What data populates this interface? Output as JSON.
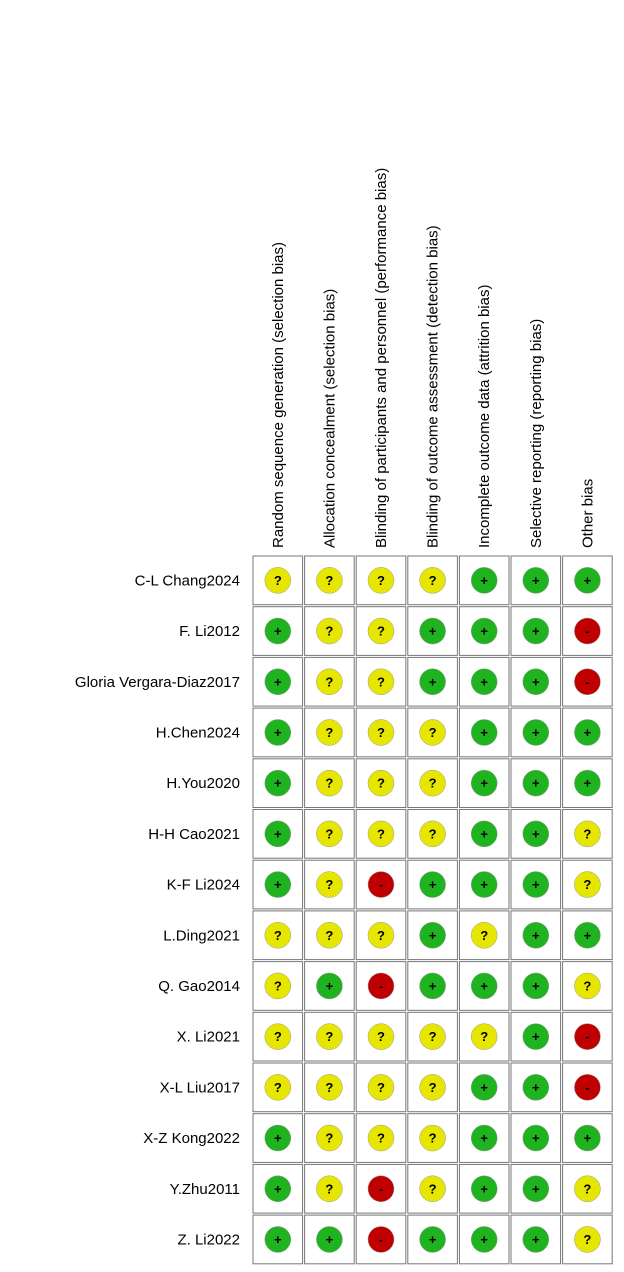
{
  "table": {
    "columns": [
      "Random sequence generation (selection bias)",
      "Allocation concealment (selection bias)",
      "Blinding of participants and personnel (performance bias)",
      "Blinding of outcome assessment (detection bias)",
      "Incomplete outcome data (attrition bias)",
      "Selective reporting (reporting bias)",
      "Other bias"
    ],
    "colors": {
      "+": "#1fb41f",
      "?": "#e6e600",
      "-": "#c00000"
    },
    "rows": [
      {
        "study": "C-L Chang2024",
        "judgements": [
          "?",
          "?",
          "?",
          "?",
          "+",
          "+",
          "+"
        ]
      },
      {
        "study": "F. Li2012",
        "judgements": [
          "+",
          "?",
          "?",
          "+",
          "+",
          "+",
          "-"
        ]
      },
      {
        "study": "Gloria Vergara-Diaz2017",
        "judgements": [
          "+",
          "?",
          "?",
          "+",
          "+",
          "+",
          "-"
        ]
      },
      {
        "study": "H.Chen2024",
        "judgements": [
          "+",
          "?",
          "?",
          "?",
          "+",
          "+",
          "+"
        ]
      },
      {
        "study": "H.You2020",
        "judgements": [
          "+",
          "?",
          "?",
          "?",
          "+",
          "+",
          "+"
        ]
      },
      {
        "study": "H-H Cao2021",
        "judgements": [
          "+",
          "?",
          "?",
          "?",
          "+",
          "+",
          "?"
        ]
      },
      {
        "study": "K-F Li2024",
        "judgements": [
          "+",
          "?",
          "-",
          "+",
          "+",
          "+",
          "?"
        ]
      },
      {
        "study": "L.Ding2021",
        "judgements": [
          "?",
          "?",
          "?",
          "+",
          "?",
          "+",
          "+"
        ]
      },
      {
        "study": "Q. Gao2014",
        "judgements": [
          "?",
          "+",
          "-",
          "+",
          "+",
          "+",
          "?"
        ]
      },
      {
        "study": "X. Li2021",
        "judgements": [
          "?",
          "?",
          "?",
          "?",
          "?",
          "+",
          "-"
        ]
      },
      {
        "study": "X-L Liu2017",
        "judgements": [
          "?",
          "?",
          "?",
          "?",
          "+",
          "+",
          "-"
        ]
      },
      {
        "study": "X-Z Kong2022",
        "judgements": [
          "+",
          "?",
          "?",
          "?",
          "+",
          "+",
          "+"
        ]
      },
      {
        "study": "Y.Zhu2011",
        "judgements": [
          "+",
          "?",
          "-",
          "?",
          "+",
          "+",
          "?"
        ]
      },
      {
        "study": "Z. Li2022",
        "judgements": [
          "+",
          "+",
          "-",
          "+",
          "+",
          "+",
          "?"
        ]
      }
    ]
  }
}
